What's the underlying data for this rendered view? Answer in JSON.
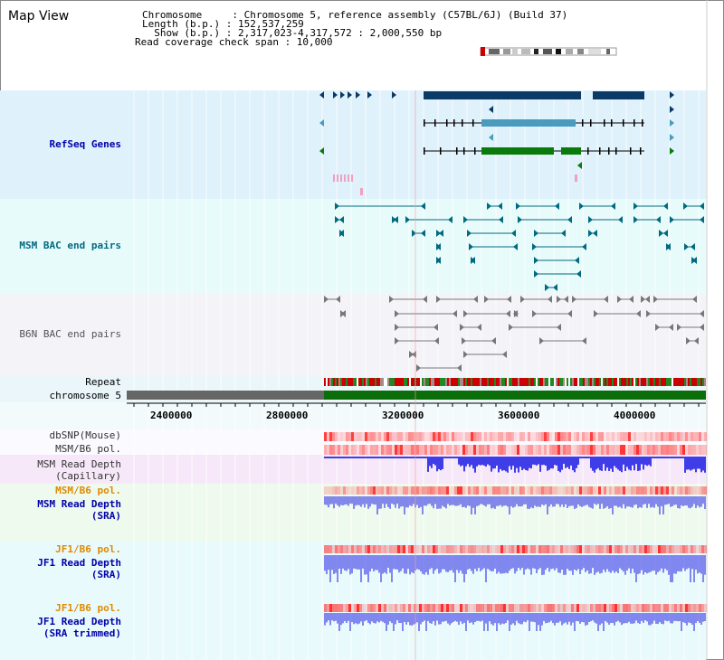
{
  "page": {
    "title": "Map View"
  },
  "info": {
    "line1": "Chromosome     : Chromosome 5, reference assembly (C57BL/6J) (Build 37)",
    "line2": "Length (b.p.) : 152,537,259",
    "line3": "  Show (b.p.) : 2,317,023-4,317,572 : 2,000,550 bp",
    "line4": "Read coverage check span : 10,000"
  },
  "tracks": {
    "refseq": "RefSeq Genes",
    "msm_bac": "MSM BAC end pairs",
    "b6n_bac": "B6N BAC end pairs",
    "repeat": "Repeat",
    "chromosome": "chromosome 5",
    "dbsnp": "dbSNP(Mouse)",
    "msm_pol_1": "MSM/B6 pol.",
    "msm_depth_cap_1": "MSM Read Depth",
    "msm_depth_cap_2": "(Capillary)",
    "msm_pol_2": "MSM/B6 pol.",
    "msm_depth_sra_1": "MSM Read Depth",
    "msm_depth_sra_2": "(SRA)",
    "jf1_pol_1": "JF1/B6 pol.",
    "jf1_depth_sra_1": "JF1 Read Depth",
    "jf1_depth_sra_2": "(SRA)",
    "jf1_pol_2": "JF1/B6 pol.",
    "jf1_depth_trim_1": "JF1 Read Depth",
    "jf1_depth_trim_2": "(SRA trimmed)"
  },
  "axis": {
    "ticks": [
      "2400000",
      "2800000",
      "3200000",
      "3600000",
      "4000000"
    ]
  },
  "colors": {
    "refseq_bg": "#dff1fb",
    "bac_bg": "#e8fbfb",
    "b6n_bg": "#f4f4f8",
    "gene_dark": "#0b3a66",
    "gene_mid": "#4a9bbd",
    "gene_green": "#0a7a0a",
    "chrom_gray": "#666666",
    "chrom_green": "#0b6e0b",
    "pol_red": "#ff3030",
    "depth_blue": "#2a2ae6",
    "label_blue": "#0000aa",
    "label_orange": "#e08a00",
    "label_teal": "#006a80"
  }
}
